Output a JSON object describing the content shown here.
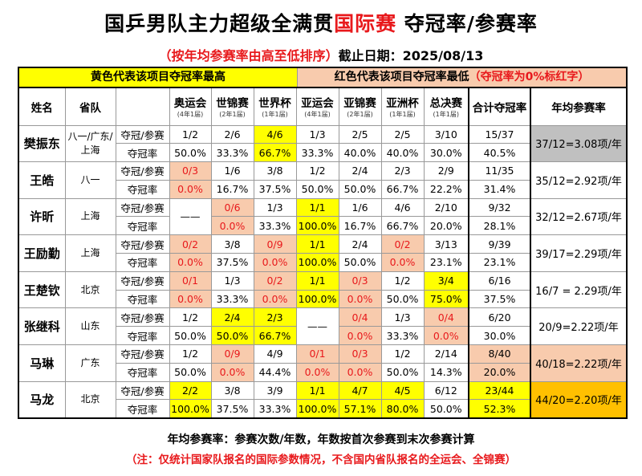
{
  "title": {
    "part1": "国乒男队主力超级全满贯",
    "part2": "国际赛",
    "part3": " 夺冠率/参赛率"
  },
  "subtitle": {
    "sort_note": "（按年均参赛率由高至低排序）",
    "date": "截止日期：2025/08/13"
  },
  "legend": {
    "yellow": "黄色代表该项目夺冠率最高",
    "salmon": "红色代表该项目夺冠率最低",
    "salmon_note": "（夺冠率为0%标红字）"
  },
  "colors": {
    "yellow": "#ffff00",
    "salmon": "#f8cbad",
    "red_text": "#e8191c",
    "gray": "#c0c0c0",
    "orange": "#ffc000"
  },
  "headers": {
    "name": "姓名",
    "province": "省队",
    "total": "合计夺冠率",
    "annual": "年均参赛率",
    "events": [
      {
        "name": "奥运会",
        "freq": "(4年1届)"
      },
      {
        "name": "世锦赛",
        "freq": "(2年1届)"
      },
      {
        "name": "世界杯",
        "freq": "(1年1届)"
      },
      {
        "name": "亚运会",
        "freq": "(4年1届)"
      },
      {
        "name": "亚锦赛",
        "freq": "(2年1届)"
      },
      {
        "name": "亚洲杯",
        "freq": "(1年1届)"
      },
      {
        "name": "总决赛",
        "freq": "(1年1届)"
      }
    ]
  },
  "row_labels": {
    "wins": "夺冠/参赛",
    "rate": "夺冠率"
  },
  "players": [
    {
      "name": "樊振东",
      "province": "八一/广东/上海",
      "annual": "37/12=3.08项/年",
      "annual_bg": "gray",
      "cells": [
        [
          "1/2",
          "50.0%",
          ""
        ],
        [
          "2/6",
          "33.3%",
          ""
        ],
        [
          "4/6",
          "66.7%",
          "y"
        ],
        [
          "1/3",
          "33.3%",
          ""
        ],
        [
          "2/5",
          "40.0%",
          ""
        ],
        [
          "2/5",
          "40.0%",
          ""
        ],
        [
          "3/10",
          "30.0%",
          ""
        ]
      ],
      "total": [
        "15/37",
        "40.5%",
        ""
      ]
    },
    {
      "name": "王皓",
      "province": "八一",
      "annual": "35/12=2.92项/年",
      "annual_bg": "",
      "cells": [
        [
          "0/3",
          "0.0%",
          "r"
        ],
        [
          "1/6",
          "16.7%",
          ""
        ],
        [
          "3/8",
          "37.5%",
          ""
        ],
        [
          "1/2",
          "50.0%",
          ""
        ],
        [
          "2/4",
          "50.0%",
          ""
        ],
        [
          "2/3",
          "66.7%",
          ""
        ],
        [
          "2/9",
          "22.2%",
          ""
        ]
      ],
      "total": [
        "11/35",
        "31.4%",
        ""
      ]
    },
    {
      "name": "许昕",
      "province": "上海",
      "annual": "32/12=2.67项/年",
      "annual_bg": "",
      "cells": [
        [
          "——",
          "",
          "none"
        ],
        [
          "0/6",
          "0.0%",
          "r"
        ],
        [
          "1/3",
          "33.3%",
          ""
        ],
        [
          "1/1",
          "100.0%",
          "y"
        ],
        [
          "1/6",
          "16.7%",
          ""
        ],
        [
          "4/6",
          "66.7%",
          ""
        ],
        [
          "2/10",
          "20.0%",
          ""
        ]
      ],
      "total": [
        "9/32",
        "28.1%",
        ""
      ]
    },
    {
      "name": "王励勤",
      "province": "上海",
      "annual": "39/17=2.29项/年",
      "annual_bg": "",
      "cells": [
        [
          "0/2",
          "0.0%",
          "r"
        ],
        [
          "3/8",
          "37.5%",
          ""
        ],
        [
          "0/9",
          "0.0%",
          "r"
        ],
        [
          "1/1",
          "100.0%",
          "y"
        ],
        [
          "2/4",
          "50.0%",
          ""
        ],
        [
          "0/2",
          "0.0%",
          "r"
        ],
        [
          "3/13",
          "23.1%",
          ""
        ]
      ],
      "total": [
        "9/39",
        "23.1%",
        ""
      ]
    },
    {
      "name": "王楚钦",
      "province": "北京",
      "annual": "16/7 = 2.29项/年",
      "annual_bg": "",
      "cells": [
        [
          "0/1",
          "0.0%",
          "r"
        ],
        [
          "1/3",
          "33.3%",
          ""
        ],
        [
          "0/2",
          "0.0%",
          "r"
        ],
        [
          "1/1",
          "100.0%",
          "y"
        ],
        [
          "0/3",
          "0.0%",
          "r"
        ],
        [
          "1/2",
          "50.0%",
          ""
        ],
        [
          "3/4",
          "75.0%",
          "y"
        ]
      ],
      "total": [
        "6/16",
        "37.5%",
        ""
      ]
    },
    {
      "name": "张继科",
      "province": "山东",
      "annual": "20/9=2.22项/年",
      "annual_bg": "",
      "cells": [
        [
          "1/2",
          "50.0%",
          ""
        ],
        [
          "2/4",
          "50.0%",
          "y"
        ],
        [
          "2/3",
          "66.7%",
          "y"
        ],
        [
          "——",
          "",
          "none"
        ],
        [
          "0/4",
          "0.0%",
          "r"
        ],
        [
          "1/3",
          "33.3%",
          ""
        ],
        [
          "0/4",
          "0.0%",
          "r"
        ]
      ],
      "total": [
        "6/20",
        "30.0%",
        ""
      ]
    },
    {
      "name": "马琳",
      "province": "广东",
      "annual": "40/18=2.22项/年",
      "annual_bg": "salmon",
      "cells": [
        [
          "1/2",
          "50.0%",
          ""
        ],
        [
          "0/9",
          "0.0%",
          "r"
        ],
        [
          "4/9",
          "44.4%",
          ""
        ],
        [
          "0/1",
          "0.0%",
          "r"
        ],
        [
          "0/3",
          "0.0%",
          "r"
        ],
        [
          "1/2",
          "50.0%",
          ""
        ],
        [
          "2/14",
          "14.3%",
          ""
        ]
      ],
      "total": [
        "8/40",
        "20.0%",
        "rb"
      ]
    },
    {
      "name": "马龙",
      "province": "北京",
      "annual": "44/20=2.20项/年",
      "annual_bg": "orange",
      "cells": [
        [
          "2/2",
          "100.0%",
          "y"
        ],
        [
          "3/8",
          "37.5%",
          ""
        ],
        [
          "3/9",
          "33.3%",
          ""
        ],
        [
          "1/1",
          "100.0%",
          "y"
        ],
        [
          "4/7",
          "57.1%",
          "y"
        ],
        [
          "4/5",
          "80.0%",
          "y"
        ],
        [
          "6/12",
          "50.0%",
          ""
        ]
      ],
      "total": [
        "23/44",
        "52.3%",
        "y"
      ]
    }
  ],
  "footer": {
    "definition": "年均参赛率：参赛次数/年数，年数按首次参赛到末次参赛计算",
    "note": "（注：仅统计国家队报名的国际参数情况，不含国内省队报名的全运会、全锦赛）"
  }
}
